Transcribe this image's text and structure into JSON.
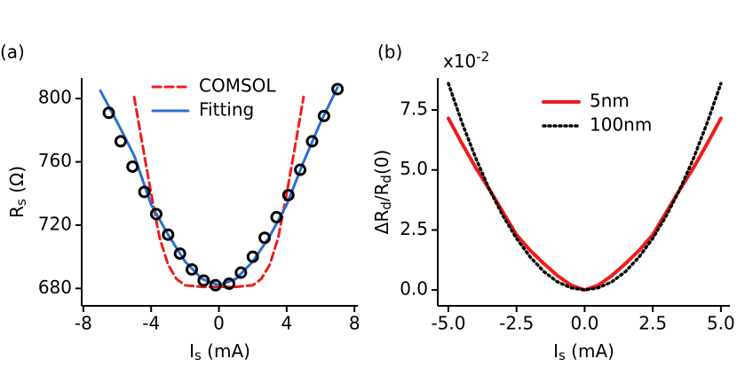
{
  "chart_data": [
    {
      "type": "line",
      "annotation": "(a)",
      "xlabel": [
        "I",
        "s",
        " (mA)"
      ],
      "ylabel": [
        "R",
        "s",
        " (Ω)"
      ],
      "xlim": [
        -8.1,
        8.2
      ],
      "ylim": [
        669,
        813
      ],
      "xticks": [
        -8,
        -4,
        0,
        4,
        8
      ],
      "yticks": [
        680,
        720,
        760,
        800
      ],
      "legend": "top",
      "series": [
        {
          "name": "COMSOL",
          "color": "#ee1c1c",
          "style": "dashed",
          "x": [
            -5,
            -4.5,
            -4,
            -3.5,
            -3,
            -2.5,
            -2,
            -1,
            0,
            1,
            2,
            2.5,
            3,
            3.5,
            4,
            4.5,
            5
          ],
          "values": [
            801,
            770,
            740,
            712,
            695,
            686,
            682,
            681,
            681,
            681,
            682,
            686,
            695,
            712,
            740,
            770,
            801
          ]
        },
        {
          "name": "Fitting",
          "color": "#2a6fd0",
          "style": "solid",
          "x": [
            -7,
            -6,
            -5,
            -4,
            -3,
            -2,
            -1,
            0,
            1,
            2,
            3,
            4,
            5,
            6,
            7
          ],
          "values": [
            805,
            785,
            764,
            733,
            714,
            697,
            686,
            682,
            686,
            697,
            713,
            733,
            760,
            785,
            807
          ]
        },
        {
          "color": "#000000",
          "style": "markers",
          "x": [
            -6.5,
            -5.8,
            -5.1,
            -4.4,
            -3.7,
            -3.0,
            -2.3,
            -1.6,
            -0.9,
            -0.2,
            0.6,
            1.3,
            2.0,
            2.7,
            3.4,
            4.1,
            4.8,
            5.5,
            6.2,
            7.0
          ],
          "values": [
            791,
            773,
            757,
            741,
            727,
            714,
            702,
            692,
            685,
            682,
            683,
            690,
            700,
            712,
            725,
            739,
            755,
            773,
            789,
            806
          ]
        }
      ]
    },
    {
      "type": "line",
      "annotation": "(b)",
      "multiplier": [
        "x10",
        "-2"
      ],
      "xlabel": [
        "I",
        "s",
        " (mA)"
      ],
      "ylabel": [
        "ΔR",
        "d",
        "/R",
        "d",
        "(0)"
      ],
      "xlim": [
        -5.39,
        5.33
      ],
      "ylim": [
        -0.66,
        8.83
      ],
      "xticks": [
        {
          "value": -5,
          "label": "-5.0"
        },
        -2.5,
        {
          "value": 0,
          "label": "0.0"
        },
        2.5,
        {
          "value": 5,
          "label": "5.0"
        }
      ],
      "yticks": [
        {
          "value": 0,
          "label": "0.0"
        },
        2.5,
        {
          "value": 5,
          "label": "5.0"
        },
        7.5
      ],
      "legend": "top",
      "series": [
        {
          "name": "5nm",
          "color": "#ee1c1c",
          "style": "thick",
          "x": [
            -5,
            -4.5,
            -4,
            -3.5,
            -3,
            -2.5,
            -2,
            -1.5,
            -1,
            -0.5,
            0,
            0.5,
            1,
            1.5,
            2,
            2.5,
            3,
            3.5,
            4,
            4.5,
            5
          ],
          "values": [
            7.15,
            6.1,
            5.1,
            4.2,
            3.25,
            2.3,
            1.65,
            1.1,
            0.6,
            0.2,
            0,
            0.2,
            0.6,
            1.1,
            1.65,
            2.3,
            3.25,
            4.2,
            5.1,
            6.1,
            7.15
          ]
        },
        {
          "name": "100nm",
          "color": "#000000",
          "style": "dotted",
          "x": [
            -5,
            -4.5,
            -4,
            -3.5,
            -3,
            -2.5,
            -2,
            -1.5,
            -1,
            -0.5,
            0,
            0.5,
            1,
            1.5,
            2,
            2.5,
            3,
            3.5,
            4,
            4.5,
            5
          ],
          "values": [
            8.6,
            6.97,
            5.5,
            4.2,
            3.1,
            2.15,
            1.38,
            0.77,
            0.34,
            0.09,
            0,
            0.09,
            0.34,
            0.77,
            1.38,
            2.15,
            3.1,
            4.2,
            5.5,
            6.97,
            8.6
          ]
        }
      ]
    }
  ]
}
